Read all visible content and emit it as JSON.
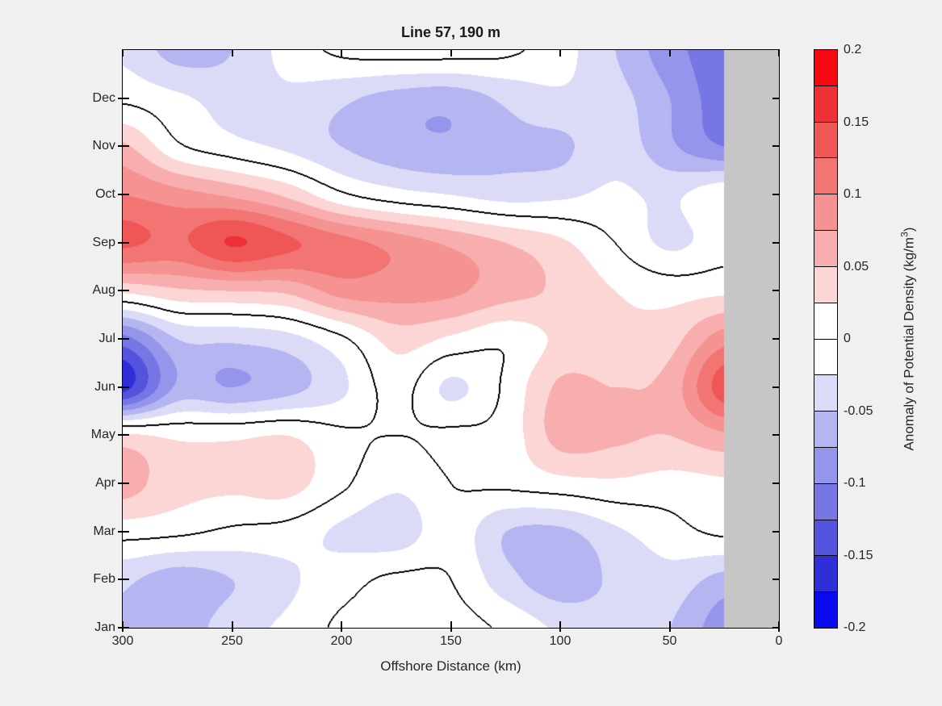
{
  "title": "Line 57, 190 m",
  "axes": {
    "x": {
      "label": "Offshore Distance (km)",
      "ticks": [
        "300",
        "250",
        "200",
        "150",
        "100",
        "50",
        "0"
      ],
      "tick_km": [
        300,
        250,
        200,
        150,
        100,
        50,
        0
      ],
      "range": [
        300,
        0
      ],
      "direction": "reversed"
    },
    "y": {
      "ticks": [
        "Jan",
        "Feb",
        "Mar",
        "Apr",
        "May",
        "Jun",
        "Jul",
        "Aug",
        "Sep",
        "Oct",
        "Nov",
        "Dec"
      ],
      "range_months": [
        1,
        13
      ]
    }
  },
  "colorbar": {
    "label_pre": "Anomaly of Potential Density (kg/m",
    "label_sup": "3",
    "label_post": ")",
    "ticks": [
      "0.2",
      "0.15",
      "0.1",
      "0.05",
      "0",
      "-0.05",
      "-0.1",
      "-0.15",
      "-0.2"
    ],
    "tick_values": [
      0.2,
      0.15,
      0.1,
      0.05,
      0,
      -0.05,
      -0.1,
      -0.15,
      -0.2
    ],
    "level_min": -0.2,
    "level_max": 0.2,
    "level_step": 0.025,
    "band_colors_low_to_high": [
      "#0b0bef",
      "#2f2fd8",
      "#5353dd",
      "#7676e4",
      "#9595eb",
      "#b5b5f1",
      "#dbdbf8",
      "#ffffff",
      "#ffffff",
      "#fcd5d5",
      "#f8aeae",
      "#f59292",
      "#f27574",
      "#ef5656",
      "#ed3136",
      "#f60812"
    ]
  },
  "chart_data": {
    "type": "heatmap",
    "subtype": "filled-contour",
    "title": "Line 57, 190 m",
    "xlabel": "Offshore Distance (km)",
    "units": "kg/m3",
    "x_km": [
      300,
      275,
      250,
      225,
      200,
      175,
      150,
      125,
      100,
      75,
      50,
      25
    ],
    "rows_months": [
      "Jan",
      "Feb",
      "Mar",
      "Apr",
      "May",
      "Jun",
      "Jul",
      "Aug",
      "Sep",
      "Oct",
      "Nov",
      "Dec",
      "Jan-wrap"
    ],
    "values": [
      [
        -0.05,
        -0.065,
        -0.035,
        -0.02,
        0.005,
        0.005,
        0.01,
        -0.005,
        -0.03,
        -0.04,
        -0.05,
        -0.09
      ],
      [
        -0.045,
        -0.065,
        -0.05,
        -0.03,
        -0.01,
        0.005,
        0.0,
        -0.04,
        -0.065,
        -0.045,
        -0.035,
        -0.06
      ],
      [
        0.01,
        0.005,
        -0.005,
        -0.01,
        -0.03,
        -0.04,
        -0.01,
        -0.05,
        -0.055,
        -0.03,
        -0.01,
        0.005
      ],
      [
        0.06,
        0.035,
        0.03,
        0.035,
        0.005,
        -0.02,
        0.0,
        0.005,
        0.015,
        0.02,
        0.015,
        0.02
      ],
      [
        0.03,
        0.02,
        0.02,
        0.025,
        0.005,
        0.0,
        0.005,
        0.01,
        0.06,
        0.055,
        0.05,
        0.07
      ],
      [
        -0.16,
        -0.07,
        -0.075,
        -0.06,
        -0.03,
        0.01,
        -0.03,
        0.005,
        0.055,
        0.05,
        0.06,
        0.14
      ],
      [
        -0.11,
        -0.05,
        -0.045,
        -0.035,
        -0.005,
        0.035,
        0.02,
        0.005,
        0.03,
        0.03,
        0.04,
        0.09
      ],
      [
        0.03,
        0.045,
        0.05,
        0.055,
        0.085,
        0.085,
        0.08,
        0.06,
        0.045,
        0.025,
        0.015,
        0.02
      ],
      [
        0.13,
        0.12,
        0.152,
        0.13,
        0.11,
        0.09,
        0.07,
        0.05,
        0.03,
        0.0,
        -0.03,
        -0.01
      ],
      [
        0.1,
        0.085,
        0.07,
        0.045,
        0.005,
        -0.015,
        -0.025,
        -0.035,
        -0.03,
        -0.02,
        -0.03,
        -0.005
      ],
      [
        0.055,
        0.005,
        -0.015,
        -0.03,
        -0.05,
        -0.065,
        -0.07,
        -0.055,
        -0.055,
        -0.035,
        -0.07,
        -0.1
      ],
      [
        -0.005,
        -0.02,
        -0.035,
        -0.03,
        -0.045,
        -0.06,
        -0.065,
        -0.045,
        -0.03,
        -0.04,
        -0.075,
        -0.115
      ],
      [
        -0.03,
        -0.06,
        -0.05,
        -0.015,
        0.005,
        0.01,
        0.01,
        0.005,
        -0.015,
        -0.05,
        -0.09,
        -0.115
      ]
    ],
    "contour_line_level": 0,
    "contour_line_color": "#000000",
    "no_data_region_km": [
      25,
      0
    ],
    "no_data_color": "#c6c6c6",
    "background_color": "#f0f0f0"
  }
}
